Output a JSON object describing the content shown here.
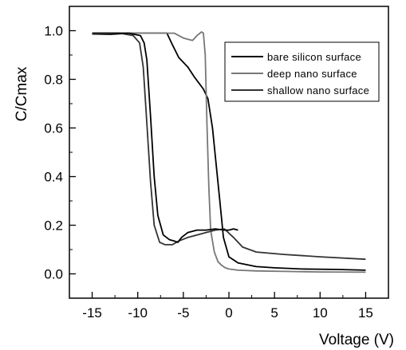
{
  "chart_data": {
    "type": "line",
    "title": "",
    "xlabel": "Voltage (V)",
    "ylabel": "C/Cmax",
    "xlim": [
      -17.5,
      17.5
    ],
    "ylim": [
      -0.1,
      1.1
    ],
    "xticks": [
      -15,
      -10,
      -5,
      0,
      5,
      10,
      15
    ],
    "yticks": [
      0.0,
      0.2,
      0.4,
      0.6,
      0.8,
      1.0
    ],
    "xtick_labels": [
      "-15",
      "-10",
      "-5",
      "0",
      "5",
      "10",
      "15"
    ],
    "ytick_labels": [
      "0.0",
      "0.2",
      "0.4",
      "0.6",
      "0.8",
      "1.0"
    ],
    "grid": false,
    "legend_position": "top-right",
    "series": [
      {
        "name": "bare silicon surface",
        "color": "#000000",
        "x": [
          -15,
          -13,
          -11,
          -9,
          -7.2,
          -6.8,
          -6.3,
          -5.5,
          -4.5,
          -3.8,
          -3.2,
          -2.8,
          -2.3,
          -1.8,
          -1.4,
          -1.0,
          -0.6,
          0.0,
          1.0,
          3.0,
          5.0,
          8.0,
          12.0,
          15.0
        ],
        "y": [
          0.985,
          0.985,
          0.99,
          0.99,
          0.99,
          0.99,
          0.95,
          0.89,
          0.85,
          0.81,
          0.78,
          0.76,
          0.72,
          0.6,
          0.45,
          0.3,
          0.15,
          0.07,
          0.045,
          0.03,
          0.025,
          0.02,
          0.018,
          0.015
        ]
      },
      {
        "name": "deep nano surface",
        "color": "#777777",
        "x": [
          -15,
          -12,
          -10,
          -8,
          -6,
          -5,
          -4,
          -3.5,
          -3.0,
          -2.8,
          -2.6,
          -2.4,
          -2.2,
          -2.0,
          -1.6,
          -1.2,
          -0.8,
          -0.4,
          0.0,
          1.0,
          3.0,
          6.0,
          10.0,
          15.0
        ],
        "y": [
          0.985,
          0.99,
          0.99,
          0.99,
          0.99,
          0.97,
          0.96,
          0.98,
          0.995,
          0.99,
          0.9,
          0.6,
          0.35,
          0.18,
          0.09,
          0.05,
          0.035,
          0.025,
          0.02,
          0.015,
          0.012,
          0.01,
          0.008,
          0.007
        ]
      },
      {
        "name": "shallow nano surface",
        "color": "#333333",
        "x": [
          -15,
          -12,
          -10.5,
          -9.8,
          -9.4,
          -9.0,
          -8.6,
          -8.2,
          -7.6,
          -7.0,
          -6.2,
          -5.5,
          -4.5,
          -3.5,
          -2.5,
          -1.5,
          -0.5,
          0.5,
          1.5,
          3.0,
          6.0,
          10.0,
          15.0
        ],
        "y": [
          0.99,
          0.99,
          0.98,
          0.95,
          0.85,
          0.62,
          0.38,
          0.2,
          0.13,
          0.12,
          0.12,
          0.135,
          0.15,
          0.16,
          0.17,
          0.18,
          0.185,
          0.15,
          0.11,
          0.09,
          0.08,
          0.07,
          0.06
        ]
      },
      {
        "name": "",
        "color": "#000000",
        "x": [
          -15,
          -11,
          -9.7,
          -9.3,
          -9.0,
          -8.6,
          -8.2,
          -7.8,
          -7.2,
          -6.5,
          -6.0,
          -5.6,
          -5.2,
          -4.5,
          -3.5,
          -2.5,
          -1.5,
          -0.5,
          0.0,
          0.5,
          1.0
        ],
        "y": [
          0.99,
          0.99,
          0.98,
          0.95,
          0.88,
          0.65,
          0.4,
          0.24,
          0.16,
          0.14,
          0.135,
          0.13,
          0.15,
          0.17,
          0.18,
          0.18,
          0.185,
          0.18,
          0.18,
          0.185,
          0.18
        ]
      }
    ]
  }
}
